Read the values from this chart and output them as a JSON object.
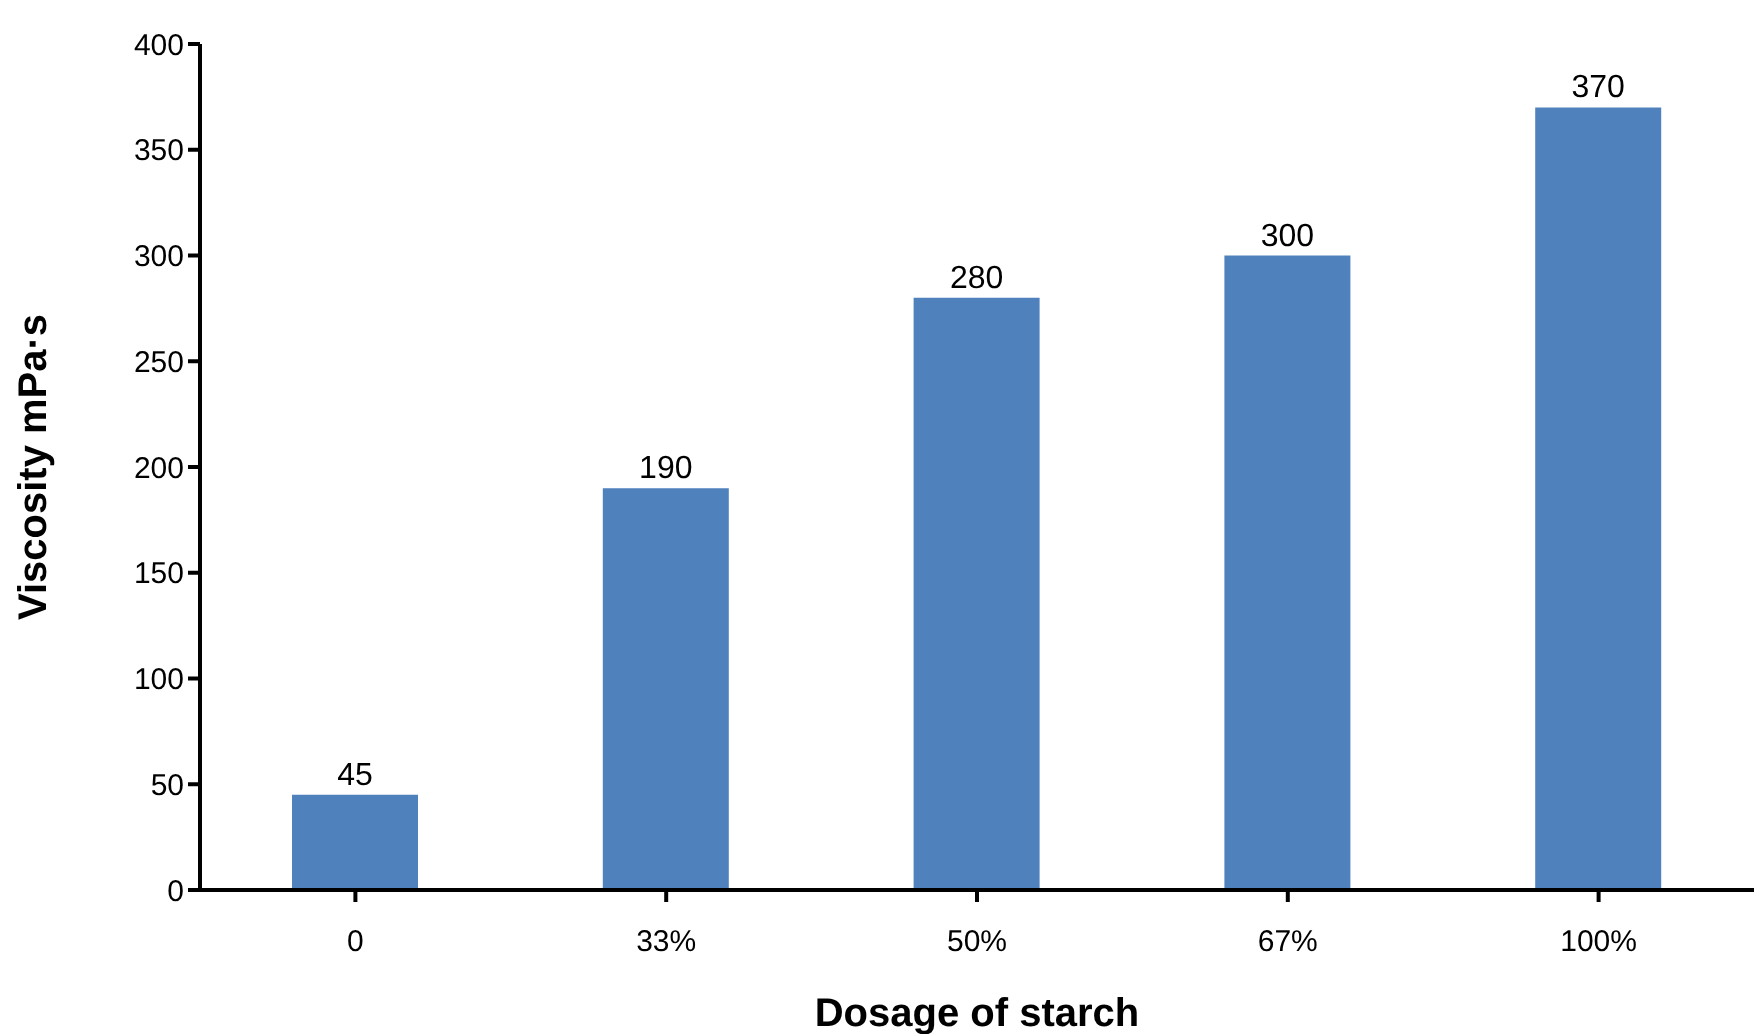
{
  "chart_data": {
    "type": "bar",
    "xlabel": "Dosage of starch",
    "ylabel": "Viscosity   mPa·s",
    "categories": [
      "0",
      "33%",
      "50%",
      "67%",
      "100%"
    ],
    "values": [
      45,
      190,
      280,
      300,
      370
    ],
    "color": "#4f81bd",
    "ylim": [
      0,
      400
    ],
    "yticks": [
      0,
      50,
      100,
      150,
      200,
      250,
      300,
      350,
      400
    ],
    "data_labels": true,
    "grid": false,
    "legend": false
  }
}
